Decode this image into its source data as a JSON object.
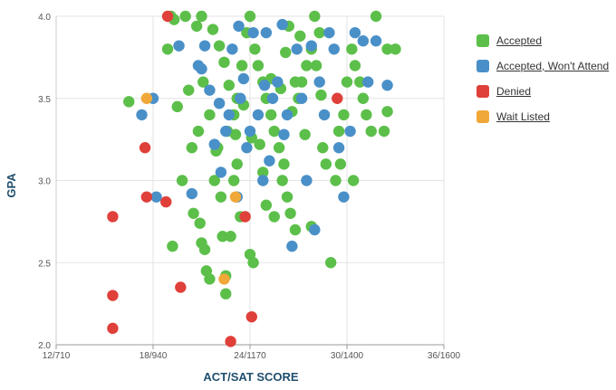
{
  "chart_data": {
    "type": "scatter",
    "xlabel": "ACT/SAT SCORE",
    "ylabel": "GPA",
    "xlim": [
      12,
      36
    ],
    "ylim": [
      2.0,
      4.0
    ],
    "x_ticks": [
      {
        "value": 12,
        "label": "12/710"
      },
      {
        "value": 18,
        "label": "18/940"
      },
      {
        "value": 24,
        "label": "24/1170"
      },
      {
        "value": 30,
        "label": "30/1400"
      },
      {
        "value": 36,
        "label": "36/1600"
      }
    ],
    "y_ticks": [
      {
        "value": 2.0,
        "label": "2.0"
      },
      {
        "value": 2.5,
        "label": "2.5"
      },
      {
        "value": 3.0,
        "label": "3.0"
      },
      {
        "value": 3.5,
        "label": "3.5"
      },
      {
        "value": 4.0,
        "label": "4.0"
      }
    ],
    "grid": true,
    "legend_position": "right",
    "series": [
      {
        "name": "Accepted",
        "color": "#5cbf4a",
        "points": [
          [
            16.5,
            3.48
          ],
          [
            18.9,
            3.8
          ],
          [
            19.1,
            4.0
          ],
          [
            19.3,
            3.98
          ],
          [
            20,
            4.0
          ],
          [
            21,
            4.0
          ],
          [
            19.5,
            3.45
          ],
          [
            20.2,
            3.55
          ],
          [
            21.1,
            3.6
          ],
          [
            21.5,
            3.4
          ],
          [
            20.8,
            3.3
          ],
          [
            20.4,
            3.2
          ],
          [
            19.8,
            3.0
          ],
          [
            20.5,
            2.8
          ],
          [
            19.2,
            2.6
          ],
          [
            21,
            2.62
          ],
          [
            21.2,
            2.58
          ],
          [
            21.3,
            2.45
          ],
          [
            21.5,
            2.4
          ],
          [
            22.3,
            2.66
          ],
          [
            22.5,
            2.31
          ],
          [
            22.2,
            2.9
          ],
          [
            21.8,
            3.0
          ],
          [
            22,
            3.2
          ],
          [
            22.6,
            3.3
          ],
          [
            23,
            3.0
          ],
          [
            23.2,
            3.1
          ],
          [
            23,
            3.4
          ],
          [
            23.2,
            3.5
          ],
          [
            23.5,
            3.7
          ],
          [
            23.8,
            3.9
          ],
          [
            24,
            4.0
          ],
          [
            24.3,
            3.8
          ],
          [
            24.5,
            3.7
          ],
          [
            24.8,
            3.6
          ],
          [
            25,
            3.5
          ],
          [
            25.3,
            3.4
          ],
          [
            25.5,
            3.3
          ],
          [
            25.8,
            3.2
          ],
          [
            26,
            3.0
          ],
          [
            26.3,
            2.9
          ],
          [
            26.5,
            2.8
          ],
          [
            26.8,
            2.7
          ],
          [
            27,
            3.5
          ],
          [
            27.2,
            3.6
          ],
          [
            27.5,
            3.7
          ],
          [
            27.8,
            3.8
          ],
          [
            28,
            4.0
          ],
          [
            28.3,
            3.9
          ],
          [
            28.5,
            3.2
          ],
          [
            28.7,
            3.1
          ],
          [
            29,
            2.5
          ],
          [
            29.3,
            3.0
          ],
          [
            29.5,
            3.3
          ],
          [
            29.8,
            3.4
          ],
          [
            30,
            3.6
          ],
          [
            30.3,
            3.8
          ],
          [
            30.5,
            3.7
          ],
          [
            30.8,
            3.6
          ],
          [
            31,
            3.5
          ],
          [
            31.2,
            3.4
          ],
          [
            31.5,
            3.3
          ],
          [
            31.8,
            4.0
          ],
          [
            32.5,
            3.8
          ],
          [
            32.5,
            3.42
          ],
          [
            32.3,
            3.3
          ],
          [
            33,
            3.8
          ],
          [
            29.6,
            3.1
          ],
          [
            30.4,
            3.0
          ],
          [
            26.1,
            3.1
          ],
          [
            24,
            2.55
          ],
          [
            24.2,
            2.5
          ],
          [
            25,
            2.85
          ],
          [
            25.5,
            2.78
          ],
          [
            27.8,
            2.72
          ],
          [
            23.4,
            2.78
          ],
          [
            22.8,
            2.66
          ],
          [
            20.9,
            2.74
          ],
          [
            22.5,
            2.42
          ],
          [
            24.8,
            3.05
          ],
          [
            25.3,
            3.62
          ],
          [
            26.2,
            3.78
          ],
          [
            26.8,
            3.6
          ],
          [
            21.7,
            3.92
          ],
          [
            22.1,
            3.82
          ],
          [
            23.6,
            3.46
          ],
          [
            24.6,
            3.22
          ],
          [
            26.6,
            3.42
          ],
          [
            27.4,
            3.28
          ],
          [
            28.4,
            3.52
          ],
          [
            23.1,
            3.28
          ],
          [
            22.7,
            3.58
          ],
          [
            21.9,
            3.18
          ],
          [
            24.1,
            3.26
          ],
          [
            25.9,
            3.56
          ],
          [
            26.4,
            3.94
          ],
          [
            27.1,
            3.88
          ],
          [
            28.1,
            3.7
          ],
          [
            20.7,
            3.94
          ],
          [
            22.4,
            3.72
          ]
        ]
      },
      {
        "name": "Accepted, Won't Attend",
        "color": "#4a90c8",
        "points": [
          [
            17.3,
            3.4
          ],
          [
            18,
            3.5
          ],
          [
            18.2,
            2.9
          ],
          [
            19.6,
            3.82
          ],
          [
            20.8,
            3.7
          ],
          [
            21.2,
            3.82
          ],
          [
            21.5,
            3.55
          ],
          [
            21.8,
            3.22
          ],
          [
            22.2,
            3.05
          ],
          [
            22.5,
            3.3
          ],
          [
            22.7,
            3.4
          ],
          [
            22.9,
            3.8
          ],
          [
            23.2,
            2.9
          ],
          [
            23.4,
            3.5
          ],
          [
            23.8,
            3.2
          ],
          [
            24,
            3.3
          ],
          [
            24.2,
            3.9
          ],
          [
            24.5,
            3.4
          ],
          [
            24.8,
            3.0
          ],
          [
            25,
            3.9
          ],
          [
            25.4,
            3.5
          ],
          [
            25.7,
            3.6
          ],
          [
            26,
            3.95
          ],
          [
            26.3,
            3.4
          ],
          [
            26.6,
            2.6
          ],
          [
            26.9,
            3.8
          ],
          [
            27.2,
            3.5
          ],
          [
            27.5,
            3.0
          ],
          [
            28,
            2.7
          ],
          [
            28.3,
            3.6
          ],
          [
            28.6,
            3.4
          ],
          [
            28.9,
            3.9
          ],
          [
            29.2,
            3.8
          ],
          [
            29.5,
            3.2
          ],
          [
            29.8,
            2.9
          ],
          [
            30.2,
            3.3
          ],
          [
            30.5,
            3.9
          ],
          [
            31,
            3.85
          ],
          [
            31.3,
            3.6
          ],
          [
            31.8,
            3.85
          ],
          [
            32.5,
            3.58
          ],
          [
            23.6,
            3.62
          ],
          [
            24.9,
            3.58
          ],
          [
            22.1,
            3.47
          ],
          [
            20.4,
            2.92
          ],
          [
            21,
            3.68
          ],
          [
            27.8,
            3.82
          ],
          [
            25.2,
            3.12
          ],
          [
            26.1,
            3.28
          ],
          [
            23.3,
            3.94
          ]
        ]
      },
      {
        "name": "Denied",
        "color": "#e0403a",
        "points": [
          [
            18.9,
            4.0
          ],
          [
            17.5,
            3.2
          ],
          [
            17.6,
            2.9
          ],
          [
            18.8,
            2.87
          ],
          [
            15.5,
            2.78
          ],
          [
            15.5,
            2.3
          ],
          [
            15.5,
            2.1
          ],
          [
            19.7,
            2.35
          ],
          [
            23.7,
            2.78
          ],
          [
            24.1,
            2.17
          ],
          [
            22.8,
            2.02
          ],
          [
            29.4,
            3.5
          ]
        ]
      },
      {
        "name": "Wait Listed",
        "color": "#f0a838",
        "points": [
          [
            17.6,
            3.5
          ],
          [
            22.4,
            2.4
          ],
          [
            23.1,
            2.9
          ]
        ]
      }
    ]
  }
}
